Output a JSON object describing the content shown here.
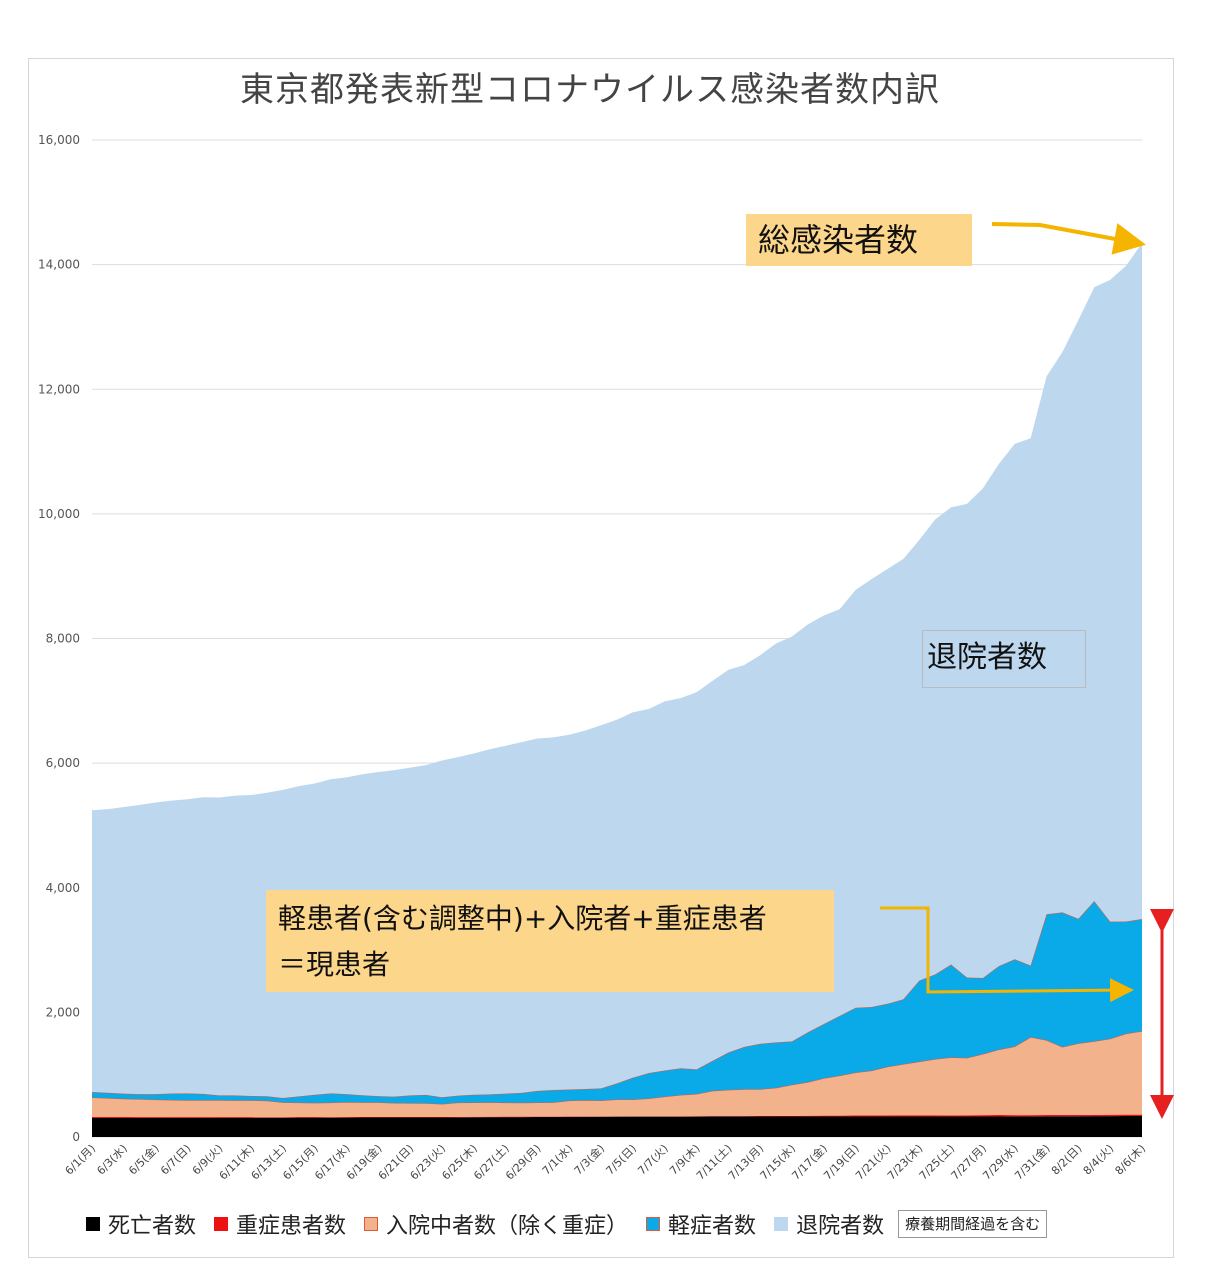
{
  "chart_data": {
    "type": "area",
    "stacked": true,
    "title": "東京都発表新型コロナウイルス感染者数内訳",
    "ylim": [
      0,
      16000
    ],
    "yticks": [
      "0",
      "2,000",
      "4,000",
      "6,000",
      "8,000",
      "10,000",
      "12,000",
      "14,000",
      "16,000"
    ],
    "x_tick_labels": [
      "6/1(月)",
      "6/3(水)",
      "6/5(金)",
      "6/7(日)",
      "6/9(火)",
      "6/11(木)",
      "6/13(土)",
      "6/15(月)",
      "6/17(水)",
      "6/19(金)",
      "6/21(日)",
      "6/23(火)",
      "6/25(木)",
      "6/27(土)",
      "6/29(月)",
      "7/1(水)",
      "7/3(金)",
      "7/5(日)",
      "7/7(火)",
      "7/9(木)",
      "7/11(土)",
      "7/13(月)",
      "7/15(水)",
      "7/17(金)",
      "7/19(日)",
      "7/21(火)",
      "7/23(木)",
      "7/25(土)",
      "7/27(月)",
      "7/29(水)",
      "7/31(金)",
      "8/2(日)",
      "8/4(火)",
      "8/6(木)"
    ],
    "grid": true,
    "legend_position": "bottom",
    "series": [
      {
        "name": "死亡者数",
        "color": "#000000",
        "values": [
          305,
          305,
          305,
          306,
          306,
          306,
          306,
          307,
          308,
          308,
          308,
          308,
          309,
          310,
          310,
          310,
          311,
          312,
          312,
          312,
          312,
          313,
          313,
          314,
          317,
          318,
          319,
          319,
          320,
          321,
          322,
          325,
          325,
          326,
          326,
          326,
          326,
          326,
          327,
          328,
          328,
          328,
          328,
          328,
          328,
          328,
          328,
          328,
          328,
          328,
          328,
          328,
          328,
          328,
          328,
          329,
          329,
          329,
          330,
          330,
          332,
          334,
          334,
          335,
          336,
          338,
          338
        ]
      },
      {
        "name": "重症患者数",
        "color": "#ee1111",
        "values": [
          18,
          18,
          17,
          17,
          16,
          15,
          15,
          14,
          13,
          13,
          12,
          11,
          10,
          10,
          10,
          9,
          9,
          9,
          8,
          8,
          8,
          7,
          7,
          7,
          7,
          7,
          7,
          7,
          7,
          6,
          6,
          5,
          5,
          5,
          6,
          6,
          7,
          8,
          8,
          8,
          8,
          8,
          9,
          10,
          11,
          13,
          15,
          16,
          17,
          18,
          20,
          22,
          22,
          22,
          20,
          21,
          22,
          24,
          22,
          22,
          22,
          21,
          19,
          21,
          21,
          21,
          21
        ]
      },
      {
        "name": "入院中者数（除く重症）",
        "color": "#f2b28b",
        "values": [
          310,
          300,
          292,
          285,
          277,
          273,
          269,
          268,
          268,
          267,
          268,
          263,
          236,
          232,
          228,
          232,
          239,
          235,
          235,
          225,
          223,
          222,
          210,
          230,
          230,
          230,
          226,
          223,
          227,
          228,
          255,
          260,
          255,
          270,
          270,
          285,
          315,
          340,
          356,
          405,
          420,
          430,
          430,
          450,
          500,
          540,
          600,
          640,
          690,
          720,
          780,
          820,
          860,
          900,
          930,
          920,
          980,
          1050,
          1100,
          1250,
          1200,
          1090,
          1150,
          1180,
          1220,
          1300,
          1340
        ]
      },
      {
        "name": "軽症者数",
        "color": "#0aa9e8",
        "values": [
          90,
          88,
          82,
          81,
          90,
          105,
          110,
          103,
          80,
          80,
          70,
          72,
          70,
          100,
          130,
          150,
          130,
          115,
          100,
          102,
          125,
          135,
          108,
          113,
          125,
          130,
          145,
          160,
          187,
          200,
          180,
          180,
          196,
          260,
          350,
          410,
          420,
          430,
          395,
          480,
          600,
          680,
          730,
          730,
          695,
          800,
          870,
          960,
          1040,
          1020,
          1010,
          1040,
          1300,
          1360,
          1490,
          1290,
          1220,
          1340,
          1400,
          1150,
          2020,
          2160,
          2000,
          2250,
          1880,
          1800,
          1800
        ]
      },
      {
        "name": "退院者数",
        "color": "#bdd7ee",
        "values": [
          4520,
          4550,
          4600,
          4640,
          4680,
          4700,
          4720,
          4760,
          4780,
          4810,
          4830,
          4870,
          4945,
          4978,
          4995,
          5041,
          5083,
          5150,
          5202,
          5240,
          5260,
          5290,
          5405,
          5433,
          5475,
          5537,
          5582,
          5629,
          5654,
          5658,
          5693,
          5753,
          5826,
          5838,
          5864,
          5842,
          5922,
          5940,
          6051,
          6099,
          6141,
          6128,
          6234,
          6401,
          6499,
          6545,
          6556,
          6528,
          6706,
          6866,
          6977,
          7068,
          7070,
          7302,
          7336,
          7600,
          7859,
          8058,
          8271,
          8461,
          8630,
          8992,
          9606,
          9851,
          10299,
          10522,
          10844
        ]
      }
    ],
    "annotations": {
      "total": "総感染者数",
      "recovered": "退院者数",
      "current_line1": "軽患者(含む調整中)+入院者+重症患者",
      "current_line2": "＝現患者",
      "legend_note": "療養期間経過を含む"
    }
  }
}
